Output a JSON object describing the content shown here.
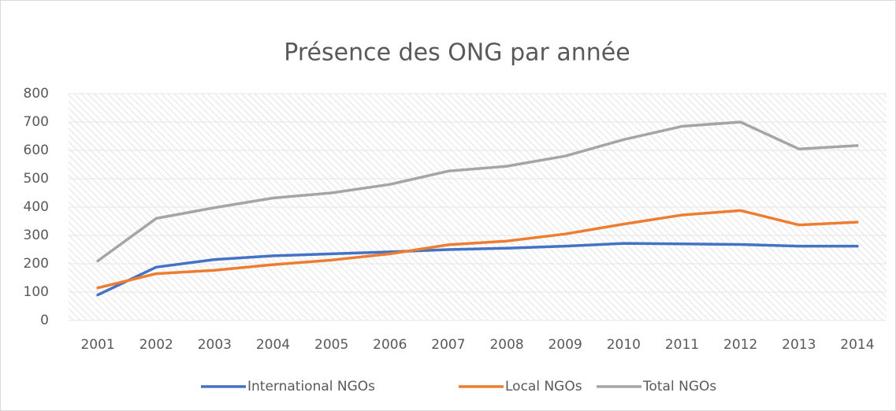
{
  "chart_data": {
    "type": "line",
    "title": "Présence des ONG par année",
    "categories": [
      "2001",
      "2002",
      "2003",
      "2004",
      "2005",
      "2006",
      "2007",
      "2008",
      "2009",
      "2010",
      "2011",
      "2012",
      "2013",
      "2014"
    ],
    "series": [
      {
        "name": "International NGOs",
        "color": "#4472c4",
        "values": [
          90,
          188,
          215,
          228,
          235,
          242,
          250,
          255,
          262,
          272,
          270,
          268,
          262,
          262
        ]
      },
      {
        "name": "Local NGOs",
        "color": "#ed7d31",
        "values": [
          115,
          165,
          177,
          197,
          213,
          235,
          267,
          280,
          305,
          340,
          372,
          388,
          337,
          347
        ]
      },
      {
        "name": "Total NGOs",
        "color": "#a5a5a5",
        "values": [
          210,
          360,
          398,
          432,
          450,
          480,
          527,
          544,
          580,
          638,
          685,
          700,
          605,
          617
        ]
      }
    ],
    "ylim": [
      0,
      800
    ],
    "yticks": [
      0,
      100,
      200,
      300,
      400,
      500,
      600,
      700,
      800
    ],
    "grid": true,
    "legend": "bottom"
  }
}
